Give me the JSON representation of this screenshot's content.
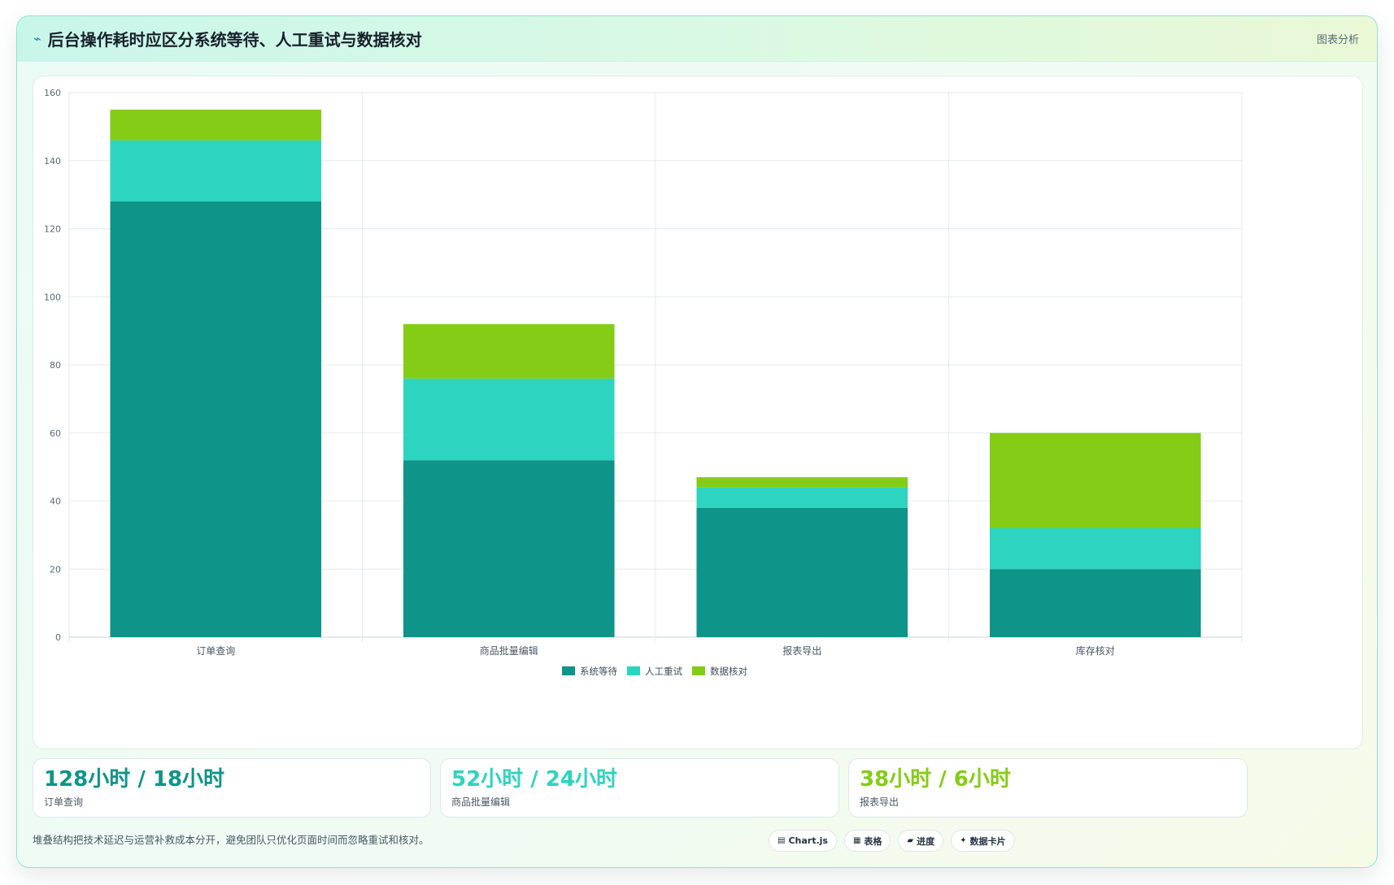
{
  "header": {
    "title": "后台操作耗时应区分系统等待、人工重试与数据核对",
    "tag": "图表分析"
  },
  "colors": {
    "system_wait": "#0e9488",
    "manual_retry": "#2dd4bf",
    "data_check": "#84cc16"
  },
  "chart_data": {
    "type": "bar",
    "stacked": true,
    "categories": [
      "订单查询",
      "商品批量编辑",
      "报表导出",
      "库存核对"
    ],
    "series": [
      {
        "name": "系统等待",
        "values": [
          128,
          52,
          38,
          20
        ],
        "color": "#0e9488"
      },
      {
        "name": "人工重试",
        "values": [
          18,
          24,
          6,
          12
        ],
        "color": "#2dd4bf"
      },
      {
        "name": "数据核对",
        "values": [
          9,
          16,
          3,
          28
        ],
        "color": "#84cc16"
      }
    ],
    "ylim": [
      0,
      160
    ],
    "yticks": [
      "0",
      "20",
      "40",
      "60",
      "80",
      "100",
      "120",
      "140",
      "160"
    ],
    "grid": true,
    "legend": "bottom"
  },
  "stats": [
    {
      "value": "128小时 / 18小时",
      "label": "订单查询",
      "color": "#0e9488"
    },
    {
      "value": "52小时 / 24小时",
      "label": "商品批量编辑",
      "color": "#2dd4bf"
    },
    {
      "value": "38小时 / 6小时",
      "label": "报表导出",
      "color": "#84cc16"
    }
  ],
  "footer": {
    "note": "堆叠结构把技术延迟与运营补救成本分开，避免团队只优化页面时间而忽略重试和核对。",
    "chips": [
      {
        "icon": "chart-icon",
        "glyph": "▤",
        "label": "Chart.js"
      },
      {
        "icon": "table-icon",
        "glyph": "▦",
        "label": "表格"
      },
      {
        "icon": "progress-icon",
        "glyph": "▰",
        "label": "进度"
      },
      {
        "icon": "data-card-icon",
        "glyph": "✦",
        "label": "数据卡片"
      }
    ]
  }
}
